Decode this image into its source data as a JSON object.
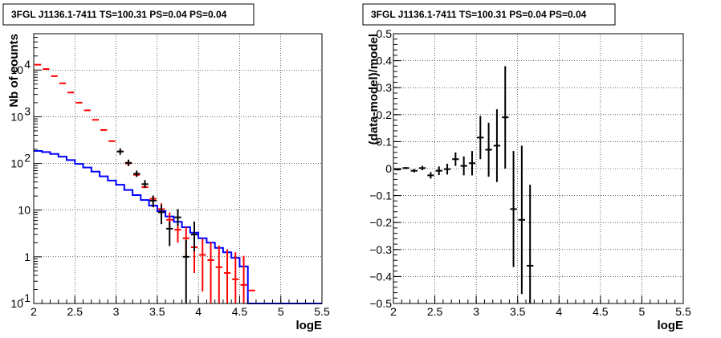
{
  "colors": {
    "model_total": "#ff0000",
    "model_source": "#0000ff",
    "data": "#000000",
    "grid": "#000000"
  },
  "chart_data": [
    {
      "type": "line",
      "title": "3FGL J1136.1-7411 TS=100.31 PS=0.04 PS=0.04",
      "xlabel": "logE",
      "ylabel": "Nb of counts",
      "xlim": [
        2,
        5.5
      ],
      "ylim": [
        0.1,
        60000
      ],
      "yscale": "log",
      "grid": true,
      "xticks": [
        "2",
        "2.5",
        "3",
        "3.5",
        "4",
        "4.5",
        "5",
        "5.5"
      ],
      "yticks": [
        {
          "value": 0.1,
          "label": "10",
          "exp": "-1"
        },
        {
          "value": 1,
          "label": "1",
          "exp": ""
        },
        {
          "value": 10,
          "label": "10",
          "exp": ""
        },
        {
          "value": 100,
          "label": "10",
          "exp": "2"
        },
        {
          "value": 1000,
          "label": "10",
          "exp": "3"
        },
        {
          "value": 10000,
          "label": "10",
          "exp": "4"
        }
      ],
      "bin_edges": [
        2.0,
        2.1,
        2.2,
        2.3,
        2.4,
        2.5,
        2.6,
        2.7,
        2.8,
        2.9,
        3.0,
        3.1,
        3.2,
        3.3,
        3.4,
        3.5,
        3.6,
        3.7,
        3.8,
        3.9,
        4.0,
        4.1,
        4.2,
        4.3,
        4.4,
        4.5,
        4.6,
        4.7
      ],
      "series": [
        {
          "role": "total-model",
          "color": "#ff0000",
          "values": [
            13000,
            10500,
            7400,
            5200,
            3300,
            2000,
            1370,
            860,
            520,
            300,
            180,
            100,
            57,
            31,
            17.5,
            10.5,
            6.2,
            3.8,
            2.5,
            1.6,
            1.1,
            0.85,
            0.6,
            0.45,
            0.33,
            0.25,
            0.19
          ],
          "err_hi": [
            null,
            null,
            null,
            null,
            null,
            null,
            null,
            null,
            null,
            null,
            null,
            null,
            null,
            null,
            20.5,
            14,
            8.9,
            6,
            4.3,
            3.1,
            2.4,
            2.05,
            1.75,
            1.45,
            1.25,
            1.05,
            null
          ],
          "err_lo": [
            null,
            null,
            null,
            null,
            null,
            null,
            null,
            null,
            null,
            null,
            null,
            null,
            null,
            null,
            14.8,
            7.5,
            4,
            2,
            1,
            0.45,
            0.18,
            0.1,
            0.1,
            0.1,
            0.1,
            0.1,
            null
          ]
        },
        {
          "role": "source-model",
          "color": "#0000ff",
          "values": [
            185,
            175,
            160,
            140,
            118,
            98,
            82,
            67,
            53,
            43,
            35,
            27,
            21,
            16.5,
            12.5,
            9.5,
            7.3,
            5.6,
            4.3,
            3.3,
            2.5,
            2,
            1.55,
            1.25,
            0.95,
            0.62,
            0.1
          ]
        },
        {
          "role": "data",
          "color": "#000000",
          "points": [
            {
              "x": 3.05,
              "y": 180
            },
            {
              "x": 3.15,
              "y": 103
            },
            {
              "x": 3.25,
              "y": 60
            },
            {
              "x": 3.35,
              "y": 36,
              "lo": 30,
              "hi": 44
            },
            {
              "x": 3.45,
              "y": 16,
              "lo": 11.5,
              "hi": 20.5
            },
            {
              "x": 3.55,
              "y": 9,
              "lo": 5,
              "hi": 13
            },
            {
              "x": 3.65,
              "y": 4,
              "lo": 1.7,
              "hi": 5.7
            },
            {
              "x": 3.75,
              "y": 7,
              "lo": 4.5,
              "hi": 10.5
            },
            {
              "x": 3.85,
              "y": 1,
              "lo": 0.1,
              "hi": 2.3
            },
            {
              "x": 3.95,
              "y": 3,
              "lo": 1.3,
              "hi": 5.7
            }
          ]
        }
      ]
    },
    {
      "type": "scatter",
      "title": "3FGL J1136.1-7411 TS=100.31 PS=0.04 PS=0.04",
      "xlabel": "logE",
      "ylabel": "(data-model)/model",
      "xlim": [
        2,
        5.5
      ],
      "ylim": [
        -0.5,
        0.5
      ],
      "grid": true,
      "xticks": [
        "2",
        "2.5",
        "3",
        "3.5",
        "4",
        "4.5",
        "5",
        "5.5"
      ],
      "yticks": [
        "−0.5",
        "−0.4",
        "−0.3",
        "−0.2",
        "−0.1",
        "0",
        "0.1",
        "0.2",
        "0.3",
        "0.4",
        "0.5"
      ],
      "points": [
        {
          "x": 2.05,
          "y": -0.003,
          "err": 0.004
        },
        {
          "x": 2.15,
          "y": 0.002,
          "err": 0.004
        },
        {
          "x": 2.25,
          "y": -0.008,
          "err": 0.006
        },
        {
          "x": 2.35,
          "y": 0.002,
          "err": 0.008
        },
        {
          "x": 2.45,
          "y": -0.025,
          "err": 0.012
        },
        {
          "x": 2.55,
          "y": -0.008,
          "err": 0.016
        },
        {
          "x": 2.65,
          "y": -0.002,
          "err": 0.02
        },
        {
          "x": 2.75,
          "y": 0.035,
          "err": 0.025
        },
        {
          "x": 2.85,
          "y": 0.01,
          "err": 0.035
        },
        {
          "x": 2.95,
          "y": 0.02,
          "err": 0.045
        },
        {
          "x": 3.05,
          "y": 0.115,
          "err": 0.08
        },
        {
          "x": 3.15,
          "y": 0.07,
          "err": 0.1
        },
        {
          "x": 3.25,
          "y": 0.085,
          "err": 0.135
        },
        {
          "x": 3.35,
          "y": 0.19,
          "err": 0.19
        },
        {
          "x": 3.45,
          "y": -0.15,
          "err": 0.215
        },
        {
          "x": 3.55,
          "y": -0.19,
          "err": 0.275
        },
        {
          "x": 3.65,
          "y": -0.36,
          "err": 0.3
        }
      ]
    }
  ]
}
